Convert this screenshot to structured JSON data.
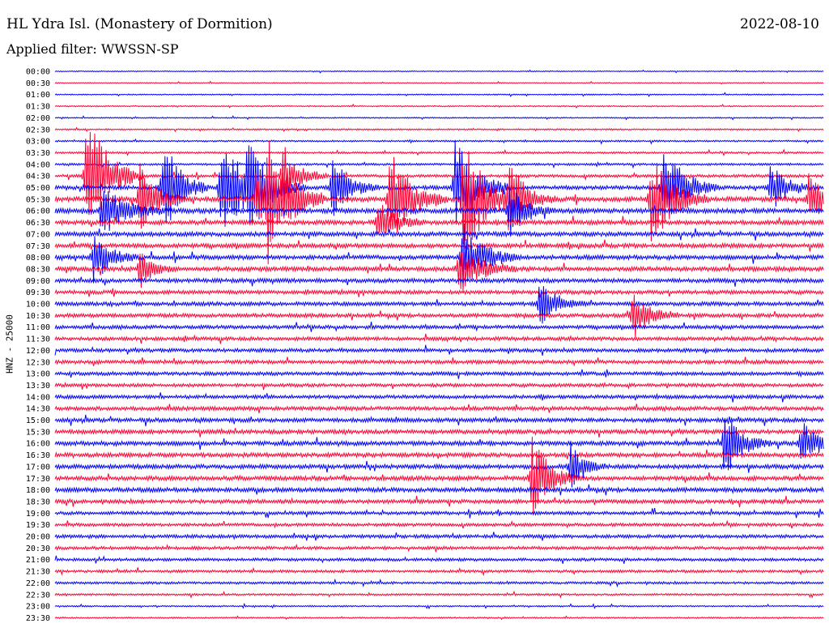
{
  "header": {
    "title": "HL Ydra Isl. (Monastery of Dormition)",
    "date": "2022-08-10",
    "filter": "Applied filter: WWSSN-SP",
    "channel": "HNZ - 25000"
  },
  "colors": {
    "blue": "#0000ff",
    "red": "#ff0033"
  },
  "chart_data": {
    "type": "line",
    "series_type": "helicorder",
    "ylabel": "HNZ - 25000",
    "traces": [
      {
        "time": "00:00",
        "color": "blue",
        "level": 0.4
      },
      {
        "time": "00:30",
        "color": "red",
        "level": 0.4
      },
      {
        "time": "01:00",
        "color": "blue",
        "level": 0.5
      },
      {
        "time": "01:30",
        "color": "red",
        "level": 0.5
      },
      {
        "time": "02:00",
        "color": "blue",
        "level": 0.5
      },
      {
        "time": "02:30",
        "color": "red",
        "level": 0.6
      },
      {
        "time": "03:00",
        "color": "blue",
        "level": 0.7
      },
      {
        "time": "03:30",
        "color": "red",
        "level": 0.8
      },
      {
        "time": "04:00",
        "color": "blue",
        "level": 0.9
      },
      {
        "time": "04:30",
        "color": "red",
        "level": 1.2
      },
      {
        "time": "05:00",
        "color": "blue",
        "level": 1.6
      },
      {
        "time": "05:30",
        "color": "red",
        "level": 2.0
      },
      {
        "time": "06:00",
        "color": "blue",
        "level": 2.0
      },
      {
        "time": "06:30",
        "color": "red",
        "level": 1.8
      },
      {
        "time": "07:00",
        "color": "blue",
        "level": 1.8
      },
      {
        "time": "07:30",
        "color": "red",
        "level": 1.8
      },
      {
        "time": "08:00",
        "color": "blue",
        "level": 1.8
      },
      {
        "time": "08:30",
        "color": "red",
        "level": 1.8
      },
      {
        "time": "09:00",
        "color": "blue",
        "level": 1.7
      },
      {
        "time": "09:30",
        "color": "red",
        "level": 1.6
      },
      {
        "time": "10:00",
        "color": "blue",
        "level": 1.6
      },
      {
        "time": "10:30",
        "color": "red",
        "level": 1.6
      },
      {
        "time": "11:00",
        "color": "blue",
        "level": 1.5
      },
      {
        "time": "11:30",
        "color": "red",
        "level": 1.5
      },
      {
        "time": "12:00",
        "color": "blue",
        "level": 1.5
      },
      {
        "time": "12:30",
        "color": "red",
        "level": 1.5
      },
      {
        "time": "13:00",
        "color": "blue",
        "level": 1.5
      },
      {
        "time": "13:30",
        "color": "red",
        "level": 1.4
      },
      {
        "time": "14:00",
        "color": "blue",
        "level": 1.5
      },
      {
        "time": "14:30",
        "color": "red",
        "level": 1.6
      },
      {
        "time": "15:00",
        "color": "blue",
        "level": 1.7
      },
      {
        "time": "15:30",
        "color": "red",
        "level": 1.7
      },
      {
        "time": "16:00",
        "color": "blue",
        "level": 1.8
      },
      {
        "time": "16:30",
        "color": "red",
        "level": 1.8
      },
      {
        "time": "17:00",
        "color": "blue",
        "level": 1.8
      },
      {
        "time": "17:30",
        "color": "red",
        "level": 1.8
      },
      {
        "time": "18:00",
        "color": "blue",
        "level": 1.8
      },
      {
        "time": "18:30",
        "color": "red",
        "level": 1.6
      },
      {
        "time": "19:00",
        "color": "blue",
        "level": 1.4
      },
      {
        "time": "19:30",
        "color": "red",
        "level": 1.3
      },
      {
        "time": "20:00",
        "color": "blue",
        "level": 1.4
      },
      {
        "time": "20:30",
        "color": "red",
        "level": 1.3
      },
      {
        "time": "21:00",
        "color": "blue",
        "level": 1.2
      },
      {
        "time": "21:30",
        "color": "red",
        "level": 1.1
      },
      {
        "time": "22:00",
        "color": "blue",
        "level": 1.0
      },
      {
        "time": "22:30",
        "color": "red",
        "level": 0.8
      },
      {
        "time": "23:00",
        "color": "blue",
        "level": 0.6
      },
      {
        "time": "23:30",
        "color": "red",
        "level": 0.6
      }
    ],
    "events": [
      {
        "time": "04:30",
        "minute": 4,
        "amplitude": 8,
        "duration": 2.5
      },
      {
        "time": "05:00",
        "minute": 14,
        "amplitude": 6,
        "duration": 2
      },
      {
        "time": "05:30",
        "minute": 11,
        "amplitude": 4,
        "duration": 2
      },
      {
        "time": "06:00",
        "minute": 6,
        "amplitude": 3,
        "duration": 3
      },
      {
        "time": "08:00",
        "minute": 5,
        "amplitude": 3,
        "duration": 2
      },
      {
        "time": "08:30",
        "minute": 11,
        "amplitude": 2.5,
        "duration": 1.5
      },
      {
        "time": "05:00",
        "minute": 21.5,
        "amplitude": 7,
        "duration": 2.5
      },
      {
        "time": "05:30",
        "minute": 27.5,
        "amplitude": 7,
        "duration": 2.5
      },
      {
        "time": "04:30",
        "minute": 29.5,
        "amplitude": 4,
        "duration": 2
      },
      {
        "time": "05:00",
        "minute": 25,
        "amplitude": 5,
        "duration": 2.5
      },
      {
        "time": "05:00",
        "minute": 36,
        "amplitude": 4,
        "duration": 2
      },
      {
        "time": "05:30",
        "minute": 26,
        "amplitude": 3,
        "duration": 3
      },
      {
        "time": "05:30",
        "minute": 43.5,
        "amplitude": 6,
        "duration": 2.5
      },
      {
        "time": "06:30",
        "minute": 42,
        "amplitude": 3,
        "duration": 2
      },
      {
        "time": "05:00",
        "minute": 52,
        "amplitude": 6,
        "duration": 2.5
      },
      {
        "time": "05:30",
        "minute": 53,
        "amplitude": 7,
        "duration": 3
      },
      {
        "time": "08:00",
        "minute": 53,
        "amplitude": 4,
        "duration": 2.5
      },
      {
        "time": "08:30",
        "minute": 52.5,
        "amplitude": 3,
        "duration": 2.5
      },
      {
        "time": "05:30",
        "minute": 59,
        "amplitude": 4,
        "duration": 2
      },
      {
        "time": "06:00",
        "minute": 59,
        "amplitude": 3,
        "duration": 2
      },
      {
        "time": "05:30",
        "minute": 77.5,
        "amplitude": 6,
        "duration": 2.5
      },
      {
        "time": "05:00",
        "minute": 79,
        "amplitude": 5,
        "duration": 2.5
      },
      {
        "time": "05:00",
        "minute": 93,
        "amplitude": 3,
        "duration": 2
      },
      {
        "time": "05:30",
        "minute": 98,
        "amplitude": 3,
        "duration": 2
      },
      {
        "time": "10:00",
        "minute": 63,
        "amplitude": 3,
        "duration": 2
      },
      {
        "time": "10:30",
        "minute": 75,
        "amplitude": 3,
        "duration": 2
      },
      {
        "time": "16:00",
        "minute": 87,
        "amplitude": 4,
        "duration": 2
      },
      {
        "time": "16:00",
        "minute": 97,
        "amplitude": 3,
        "duration": 2
      },
      {
        "time": "17:30",
        "minute": 62,
        "amplitude": 5,
        "duration": 2
      },
      {
        "time": "17:00",
        "minute": 67,
        "amplitude": 3,
        "duration": 1.5
      }
    ]
  },
  "time_labels": [
    "00:00",
    "00:30",
    "01:00",
    "01:30",
    "02:00",
    "02:30",
    "03:00",
    "03:30",
    "04:00",
    "04:30",
    "05:00",
    "05:30",
    "06:00",
    "06:30",
    "07:00",
    "07:30",
    "08:00",
    "08:30",
    "09:00",
    "09:30",
    "10:00",
    "10:30",
    "11:00",
    "11:30",
    "12:00",
    "12:30",
    "13:00",
    "13:30",
    "14:00",
    "14:30",
    "15:00",
    "15:30",
    "16:00",
    "16:30",
    "17:00",
    "17:30",
    "18:00",
    "18:30",
    "19:00",
    "19:30",
    "20:00",
    "20:30",
    "21:00",
    "21:30",
    "22:00",
    "22:30",
    "23:00",
    "23:30"
  ]
}
